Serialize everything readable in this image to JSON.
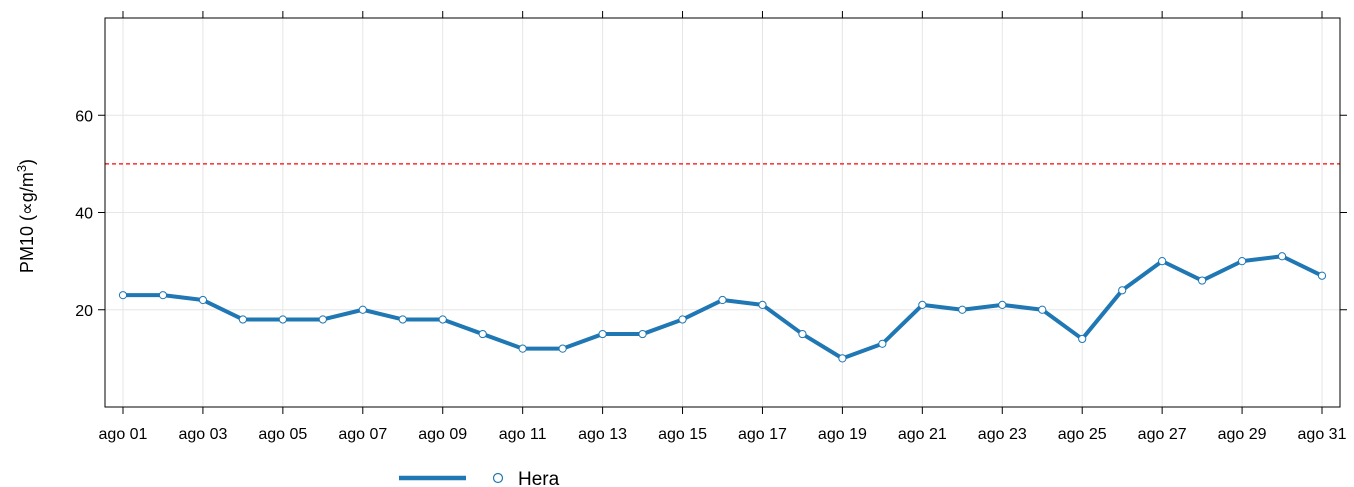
{
  "chart_data": {
    "type": "line",
    "title": "",
    "xlabel": "",
    "ylabel": "PM10 (∝g/m³)",
    "ylabel_parts": {
      "main": "PM10 (",
      "mu": "∝",
      "unit": "g/m",
      "sup": "3",
      "close": ")"
    },
    "x_tick_labels": [
      "ago 01",
      "ago 03",
      "ago 05",
      "ago 07",
      "ago 09",
      "ago 11",
      "ago 13",
      "ago 15",
      "ago 17",
      "ago 19",
      "ago 21",
      "ago 23",
      "ago 25",
      "ago 27",
      "ago 29",
      "ago 31"
    ],
    "x_days": [
      1,
      2,
      3,
      4,
      5,
      6,
      7,
      8,
      9,
      10,
      11,
      12,
      13,
      14,
      15,
      16,
      17,
      18,
      19,
      20,
      21,
      22,
      23,
      24,
      25,
      26,
      27,
      28,
      29,
      30,
      31
    ],
    "y_ticks": [
      20,
      40,
      60
    ],
    "ylim": [
      0,
      80
    ],
    "xlim_days": [
      0.55,
      31.45
    ],
    "grid": true,
    "reference_line": {
      "value": 50,
      "color": "#ff0000",
      "style": "dashed"
    },
    "series": [
      {
        "name": "Hera",
        "color": "#1f77b4",
        "values": [
          23,
          23,
          22,
          18,
          18,
          18,
          20,
          18,
          18,
          15,
          12,
          12,
          15,
          15,
          18,
          22,
          21,
          15,
          10,
          13,
          21,
          20,
          21,
          20,
          14,
          24,
          30,
          26,
          30,
          31,
          27
        ]
      }
    ],
    "legend_position": "bottom"
  }
}
